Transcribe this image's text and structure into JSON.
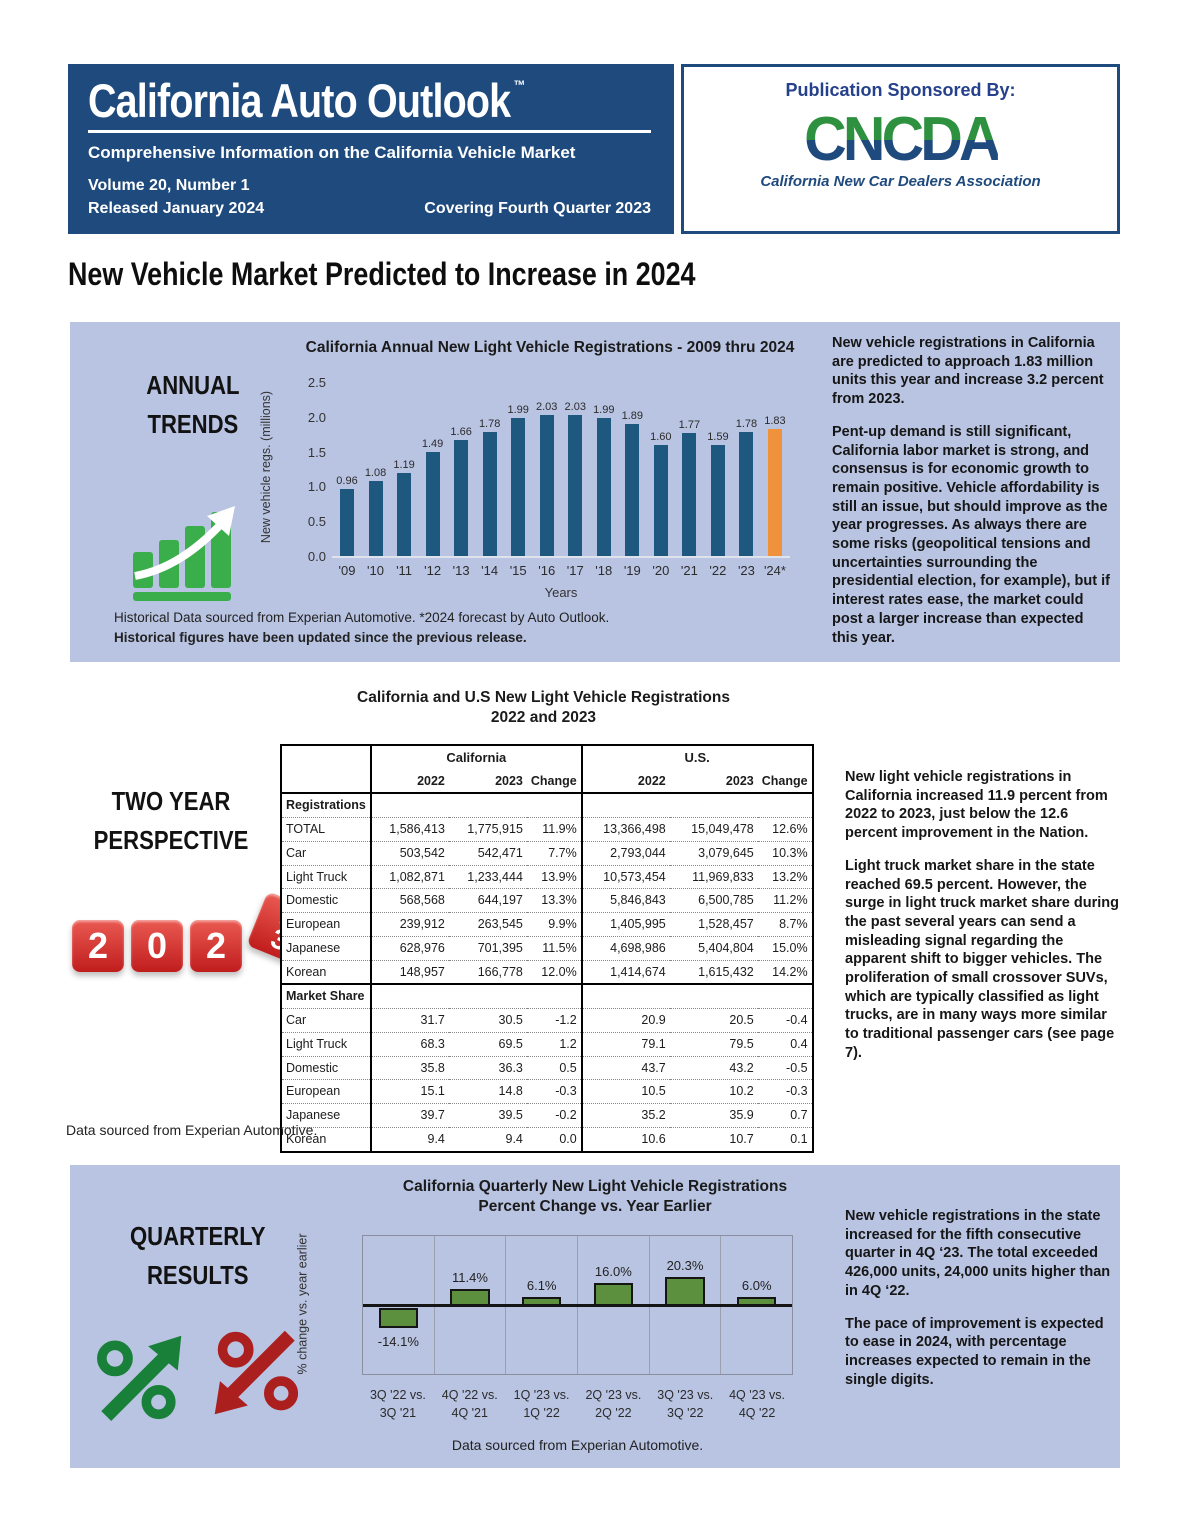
{
  "masthead": {
    "title": "California Auto Outlook",
    "tm": "™",
    "subtitle": "Comprehensive Information on the California Vehicle Market",
    "volume": "Volume 20, Number 1",
    "released": "Released January 2024",
    "covering": "Covering Fourth Quarter 2023"
  },
  "sponsor": {
    "label": "Publication Sponsored By:",
    "logo_text": "CNCDA",
    "logo_caption": "California New Car Dealers Association"
  },
  "headline": "New Vehicle Market Predicted to Increase in 2024",
  "annual": {
    "section_label": "ANNUAL\nTRENDS",
    "chart_data": {
      "type": "bar",
      "title": "California Annual New Light Vehicle Registrations - 2009 thru 2024",
      "x_labels": [
        "'09",
        "'10",
        "'11",
        "'12",
        "'13",
        "'14",
        "'15",
        "'16",
        "'17",
        "'18",
        "'19",
        "'20",
        "'21",
        "'22",
        "'23",
        "'24*"
      ],
      "values": [
        0.96,
        1.08,
        1.19,
        1.49,
        1.66,
        1.78,
        1.99,
        2.03,
        2.03,
        1.99,
        1.89,
        1.6,
        1.77,
        1.59,
        1.78,
        1.83
      ],
      "bar_labels": [
        "0.96",
        "1.08",
        "1.19",
        "1.49",
        "1.66",
        "1.78",
        "1.99",
        "2.03",
        "2.03",
        "1.99",
        "1.89",
        "1.60",
        "1.77",
        "1.59",
        "1.78",
        "1.83"
      ],
      "ylabel": "New vehicle regs. (millions)",
      "xlabel": "Years",
      "yticks": [
        "0.0",
        "0.5",
        "1.0",
        "1.5",
        "2.0",
        "2.5"
      ],
      "ylim": [
        0,
        2.5
      ],
      "forecast_index": 15,
      "bar_color": "#1e587f",
      "forecast_color": "#f0913b",
      "grid": "off",
      "legend": "none"
    },
    "note_line1": "Historical Data sourced from Experian Automotive. *2024 forecast by Auto Outlook.",
    "note_line2": "Historical figures have been updated since the previous release.",
    "commentary": [
      "New vehicle registrations in California are predicted to approach 1.83 million units this year and increase 3.2 percent from 2023.",
      "Pent-up demand is still significant, California labor market is strong, and consensus is for economic growth to remain positive. Vehicle affordability is still an issue, but should improve as the year progresses. As always there are some risks (geopolitical tensions and uncertainties surrounding the presidential election, for example), but if interest rates ease, the market could post a larger increase than expected this year."
    ]
  },
  "two_year": {
    "section_label": "TWO YEAR\nPERSPECTIVE",
    "dice_digits": [
      "2",
      "0",
      "2"
    ],
    "dice_roll_faces": [
      "2",
      "3"
    ],
    "title_line1": "California and U.S New Light Vehicle Registrations",
    "title_line2": "2022 and 2023",
    "table": {
      "group_headers": [
        "",
        "California",
        "U.S."
      ],
      "col_headers": [
        "",
        "2022",
        "2023",
        "Change",
        "2022",
        "2023",
        "Change"
      ],
      "sections": [
        {
          "name": "Registrations",
          "rows": [
            [
              "TOTAL",
              "1,586,413",
              "1,775,915",
              "11.9%",
              "13,366,498",
              "15,049,478",
              "12.6%"
            ],
            [
              "Car",
              "503,542",
              "542,471",
              "7.7%",
              "2,793,044",
              "3,079,645",
              "10.3%"
            ],
            [
              "Light Truck",
              "1,082,871",
              "1,233,444",
              "13.9%",
              "10,573,454",
              "11,969,833",
              "13.2%"
            ],
            [
              "Domestic",
              "568,568",
              "644,197",
              "13.3%",
              "5,846,843",
              "6,500,785",
              "11.2%"
            ],
            [
              "European",
              "239,912",
              "263,545",
              "9.9%",
              "1,405,995",
              "1,528,457",
              "8.7%"
            ],
            [
              "Japanese",
              "628,976",
              "701,395",
              "11.5%",
              "4,698,986",
              "5,404,804",
              "15.0%"
            ],
            [
              "Korean",
              "148,957",
              "166,778",
              "12.0%",
              "1,414,674",
              "1,615,432",
              "14.2%"
            ]
          ]
        },
        {
          "name": "Market Share",
          "rows": [
            [
              "Car",
              "31.7",
              "30.5",
              "-1.2",
              "20.9",
              "20.5",
              "-0.4"
            ],
            [
              "Light Truck",
              "68.3",
              "69.5",
              "1.2",
              "79.1",
              "79.5",
              "0.4"
            ],
            [
              "Domestic",
              "35.8",
              "36.3",
              "0.5",
              "43.7",
              "43.2",
              "-0.5"
            ],
            [
              "European",
              "15.1",
              "14.8",
              "-0.3",
              "10.5",
              "10.2",
              "-0.3"
            ],
            [
              "Japanese",
              "39.7",
              "39.5",
              "-0.2",
              "35.2",
              "35.9",
              "0.7"
            ],
            [
              "Korean",
              "9.4",
              "9.4",
              "0.0",
              "10.6",
              "10.7",
              "0.1"
            ]
          ]
        }
      ]
    },
    "commentary": [
      "New light vehicle registrations in California increased 11.9 percent from 2022 to 2023, just below the 12.6 percent improvement in the Nation.",
      "Light truck market share in the state reached 69.5 percent. However, the surge in light truck market share during the past several years can send a misleading signal regarding the apparent shift to bigger vehicles. The proliferation of small crossover SUVs, which are typically classified as light trucks, are in many ways more similar to traditional passenger cars (see page 7)."
    ],
    "source_note": "Data sourced from Experian Automotive."
  },
  "quarterly": {
    "section_label": "QUARTERLY\nRESULTS",
    "chart_data": {
      "type": "bar",
      "title_line1": "California Quarterly New Light Vehicle Registrations",
      "title_line2": "Percent Change vs. Year Earlier",
      "categories": [
        [
          "3Q '22 vs.",
          "3Q '21"
        ],
        [
          "4Q '22 vs.",
          "4Q '21"
        ],
        [
          "1Q '23 vs.",
          "1Q '22"
        ],
        [
          "2Q '23 vs.",
          "2Q '22"
        ],
        [
          "3Q '23 vs.",
          "3Q '22"
        ],
        [
          "4Q '23 vs.",
          "4Q '22"
        ]
      ],
      "values": [
        -14.1,
        11.4,
        6.1,
        16.0,
        20.3,
        6.0
      ],
      "bar_labels": [
        "-14.1%",
        "11.4%",
        "6.1%",
        "16.0%",
        "20.3%",
        "6.0%"
      ],
      "ylabel": "% change vs. year earlier",
      "bar_color": "#5c8f3e",
      "grid": "vertical-dividers",
      "legend": "none"
    },
    "commentary": [
      "New vehicle registrations in the state increased for the fifth consecutive quarter in 4Q ‘23. The total exceeded 426,000 units, 24,000 units higher than in 4Q ‘22.",
      "The pace of improvement is expected to ease in 2024, with percentage increases expected to remain in the single digits."
    ],
    "source_note": "Data sourced from Experian Automotive."
  },
  "colors": {
    "panel_bg": "#b8c4e2",
    "navy": "#1f4a7d",
    "bar_blue": "#1e587f",
    "bar_orange": "#f0913b",
    "bar_green": "#5c8f3e",
    "logo_green": "#2e9140",
    "dice_red": "#c01d1d",
    "icon_green": "#188038",
    "icon_red": "#ab1f1f"
  }
}
